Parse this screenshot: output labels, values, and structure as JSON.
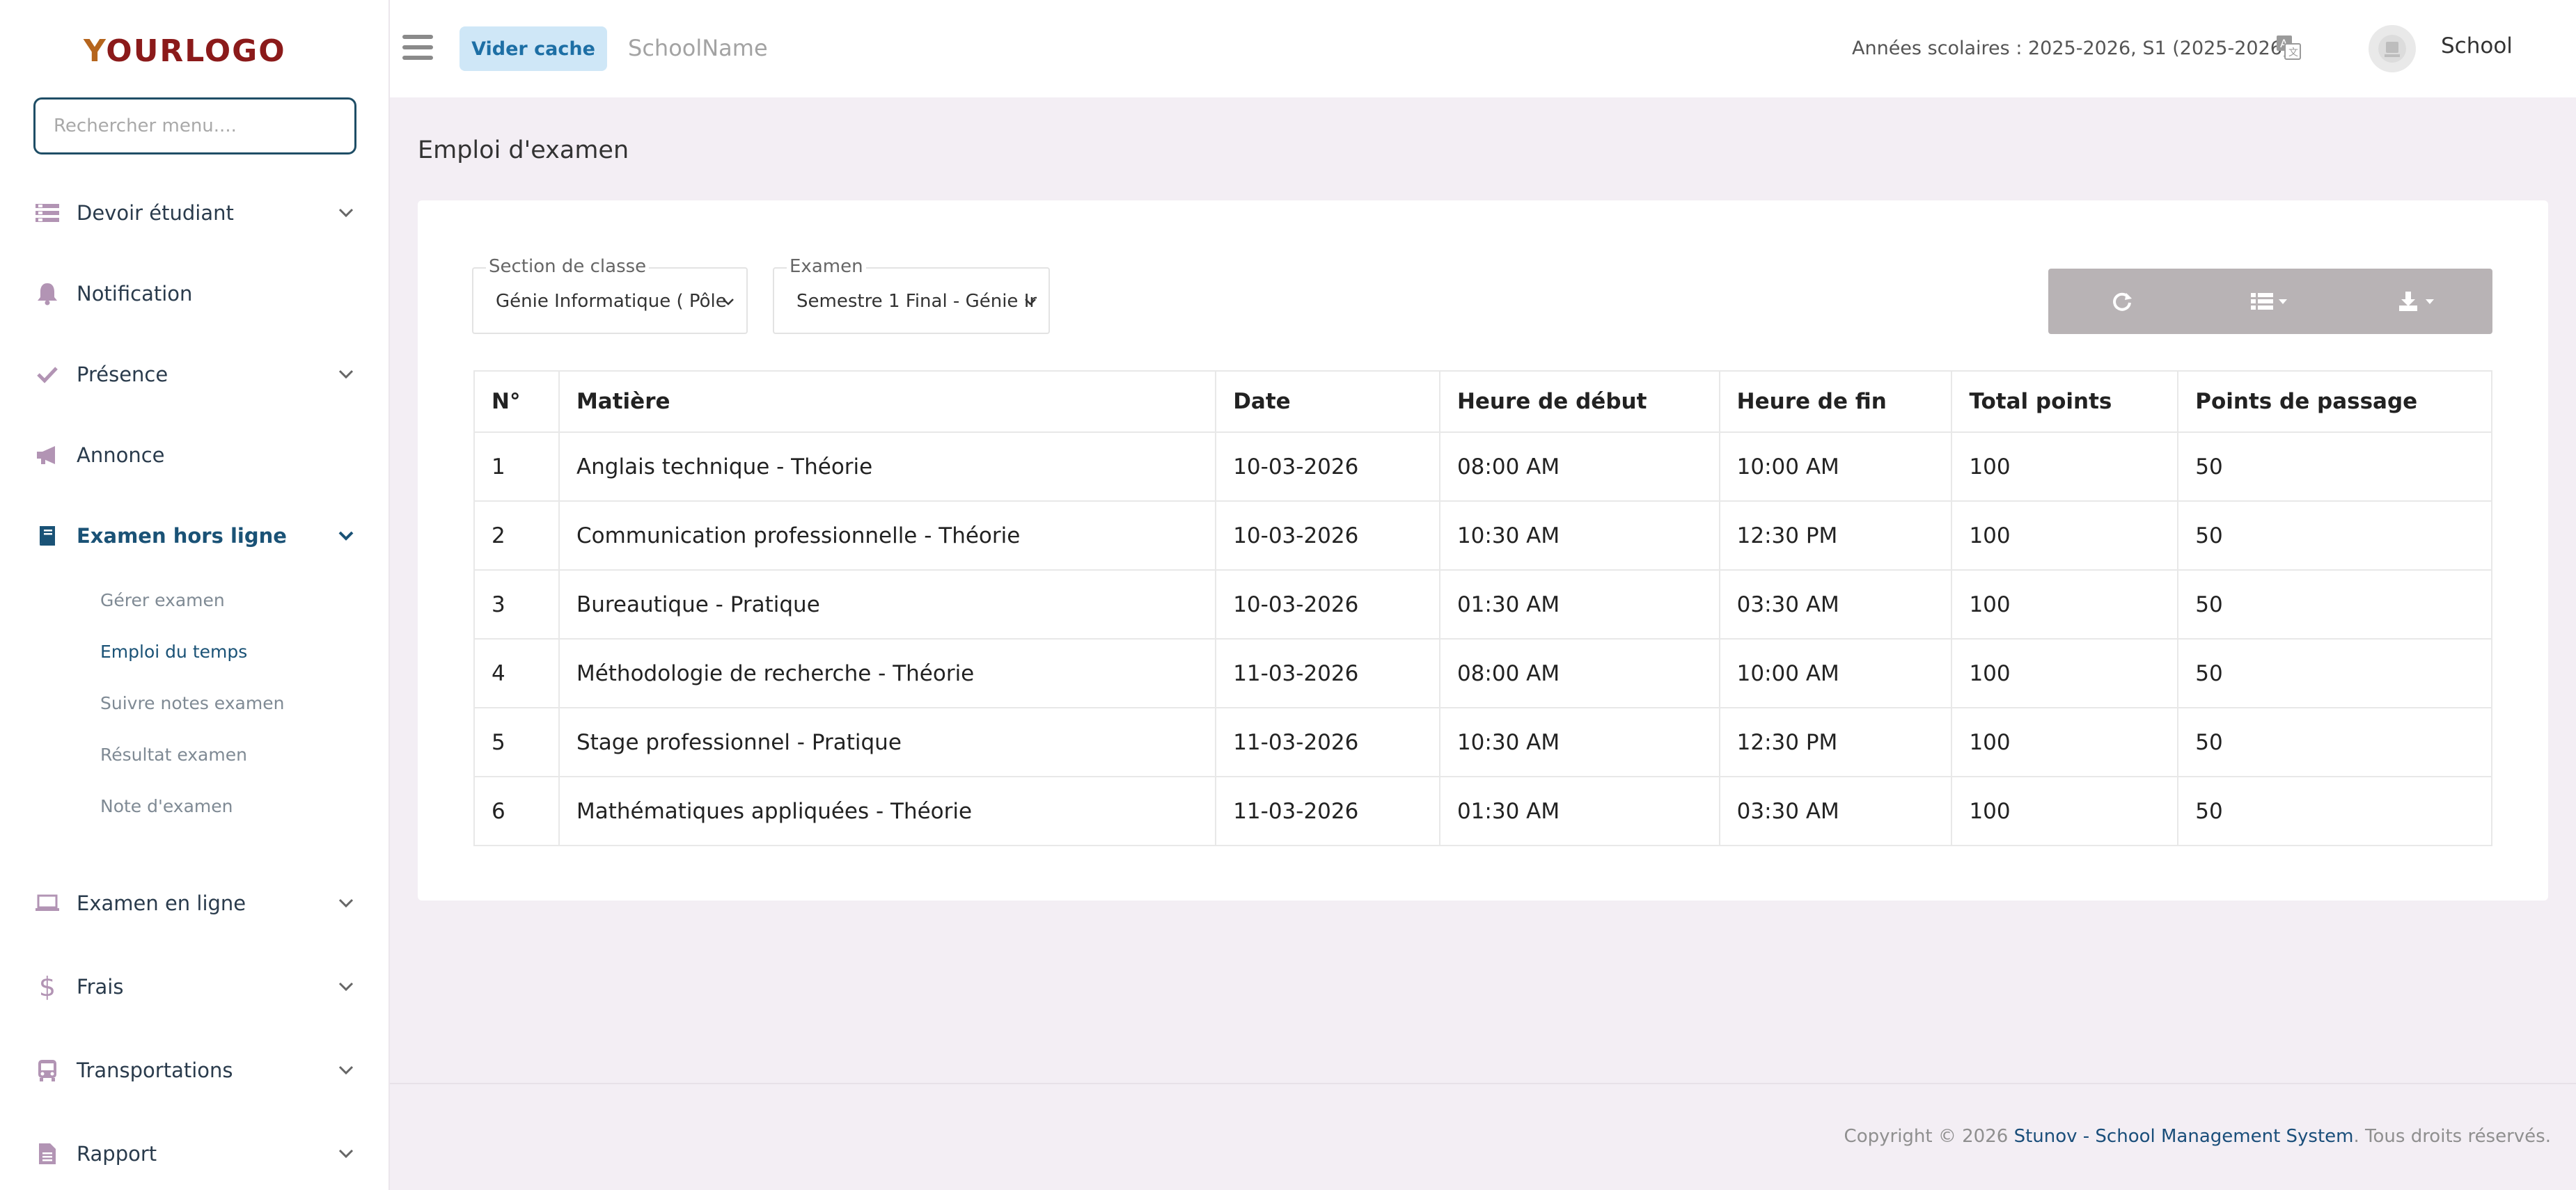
{
  "sidebar": {
    "logo": {
      "first": "Y",
      "rest": "OURLOGO"
    },
    "search_placeholder": "Rechercher menu....",
    "items": [
      {
        "label": "Devoir étudiant",
        "icon": "list-icon"
      },
      {
        "label": "Notification",
        "icon": "bell-icon"
      },
      {
        "label": "Présence",
        "icon": "check-icon"
      },
      {
        "label": "Annonce",
        "icon": "megaphone-icon"
      },
      {
        "label": "Examen hors ligne",
        "icon": "book-icon"
      },
      {
        "label": "Examen en ligne",
        "icon": "laptop-icon"
      },
      {
        "label": "Frais",
        "icon": "dollar-icon"
      },
      {
        "label": "Transportations",
        "icon": "bus-icon"
      },
      {
        "label": "Rapport",
        "icon": "report-icon"
      }
    ],
    "sub_items": [
      {
        "label": "Gérer examen"
      },
      {
        "label": "Emploi du temps"
      },
      {
        "label": "Suivre notes examen"
      },
      {
        "label": "Résultat examen"
      },
      {
        "label": "Note d'examen"
      }
    ]
  },
  "header": {
    "cache_button": "Vider cache",
    "school_name": "SchoolName",
    "years": "Années scolaires : 2025-2026, S1 (2025-2026)",
    "user_name": "School"
  },
  "page": {
    "title": "Emploi d'examen"
  },
  "filters": {
    "section": {
      "legend": "Section de classe",
      "value": "Génie Informatique ( Pôle"
    },
    "exam": {
      "legend": "Examen",
      "value": "Semestre 1 Final - Génie Ir"
    }
  },
  "table": {
    "headers": [
      "N°",
      "Matière",
      "Date",
      "Heure de début",
      "Heure de fin",
      "Total points",
      "Points de passage"
    ],
    "rows": [
      [
        "1",
        "Anglais technique - Théorie",
        "10-03-2026",
        "08:00 AM",
        "10:00 AM",
        "100",
        "50"
      ],
      [
        "2",
        "Communication professionnelle - Théorie",
        "10-03-2026",
        "10:30 AM",
        "12:30 PM",
        "100",
        "50"
      ],
      [
        "3",
        "Bureautique - Pratique",
        "10-03-2026",
        "01:30 AM",
        "03:30 AM",
        "100",
        "50"
      ],
      [
        "4",
        "Méthodologie de recherche - Théorie",
        "11-03-2026",
        "08:00 AM",
        "10:00 AM",
        "100",
        "50"
      ],
      [
        "5",
        "Stage professionnel - Pratique",
        "11-03-2026",
        "10:30 AM",
        "12:30 PM",
        "100",
        "50"
      ],
      [
        "6",
        "Mathématiques appliquées - Théorie",
        "11-03-2026",
        "01:30 AM",
        "03:30 AM",
        "100",
        "50"
      ]
    ]
  },
  "footer": {
    "prefix": "Copyright © 2026 ",
    "link": "Stunov - School Management System",
    "suffix": ". Tous droits réservés."
  },
  "colors": {
    "accent": "#1a5276",
    "background": "#f3eef4",
    "toolbar": "#b8b3b5",
    "cache_button_bg": "#cfe7f7"
  }
}
